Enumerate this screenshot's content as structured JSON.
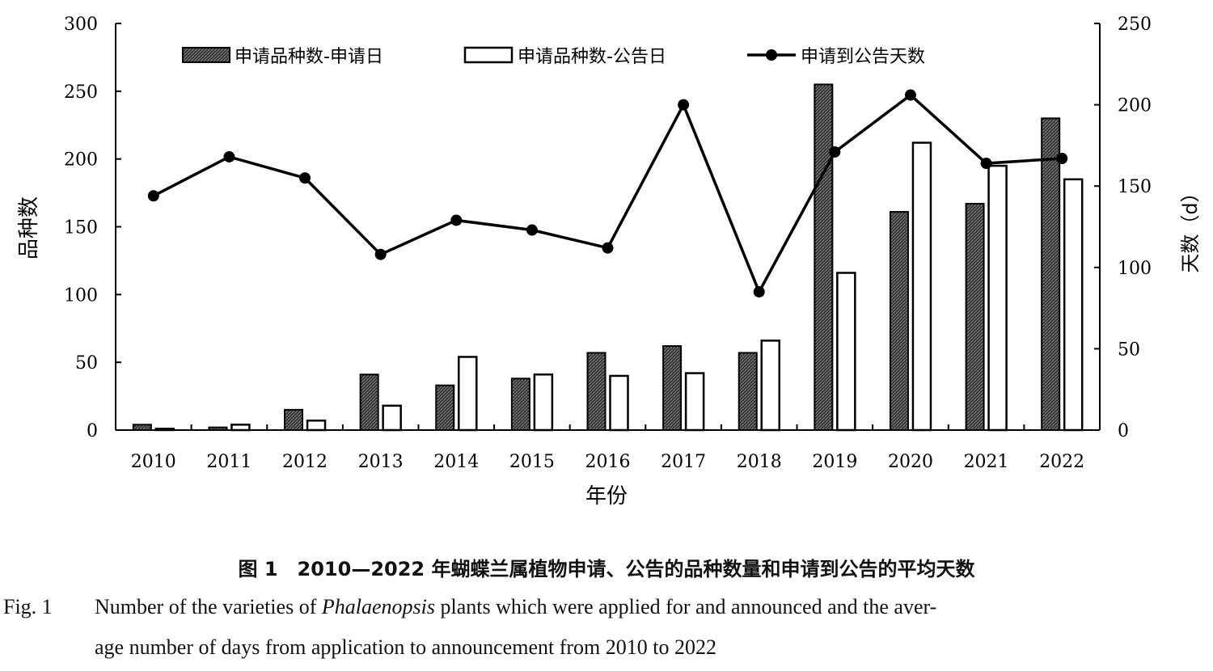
{
  "chart_data": {
    "type": "bar",
    "categories": [
      "2010",
      "2011",
      "2012",
      "2013",
      "2014",
      "2015",
      "2016",
      "2017",
      "2018",
      "2019",
      "2020",
      "2021",
      "2022"
    ],
    "series": [
      {
        "name": "申请品种数-申请日",
        "type": "bar",
        "axis": "left",
        "values": [
          4,
          2,
          15,
          41,
          33,
          38,
          57,
          62,
          57,
          255,
          161,
          167,
          230
        ]
      },
      {
        "name": "申请品种数-公告日",
        "type": "bar",
        "axis": "left",
        "values": [
          1,
          4,
          7,
          18,
          54,
          41,
          40,
          42,
          66,
          116,
          212,
          195,
          185
        ]
      },
      {
        "name": "申请到公告天数",
        "type": "line",
        "axis": "right",
        "values": [
          144,
          168,
          155,
          108,
          129,
          123,
          112,
          200,
          85,
          171,
          206,
          164,
          167
        ]
      }
    ],
    "xlabel": "年份",
    "ylabel": "品种数",
    "y2label": "天数（d）",
    "ylim": [
      0,
      300
    ],
    "y2lim": [
      0,
      250
    ],
    "yticks": [
      "0",
      "50",
      "100",
      "150",
      "200",
      "250",
      "300"
    ],
    "y2ticks": [
      "0",
      "50",
      "100",
      "150",
      "200",
      "250"
    ],
    "legend_position": "top",
    "grid": false
  },
  "caption": {
    "cn": "图 1　2010—2022 年蝴蝶兰属植物申请、公告的品种数量和申请到公告的平均天数",
    "en_label": "Fig. 1",
    "en_line1_pre": "Number of the varieties of ",
    "en_italic": "Phalaenopsis",
    "en_line1_post": " plants which were applied for and announced and the aver-",
    "en_line2": "age number of days from application to announcement from 2010 to 2022"
  }
}
